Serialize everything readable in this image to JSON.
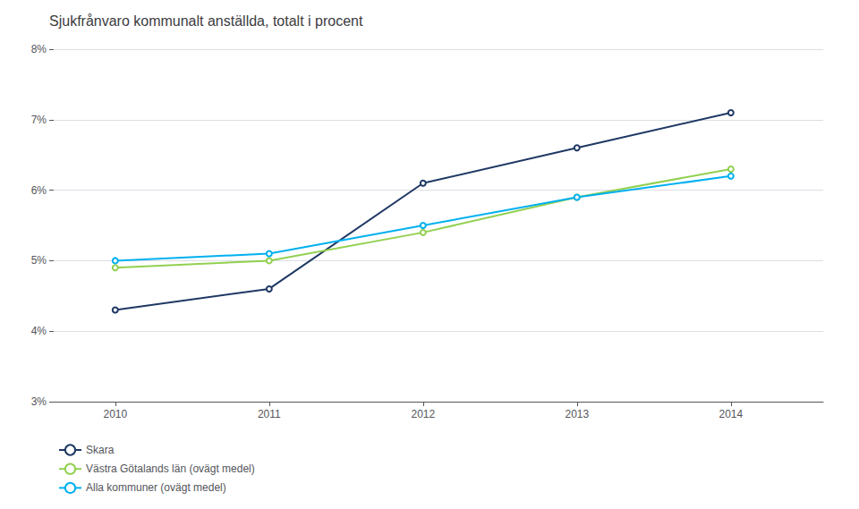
{
  "chart_data": {
    "type": "line",
    "title": "Sjukfrånvaro kommunalt anställda, totalt i procent",
    "x": [
      2010,
      2011,
      2012,
      2013,
      2014
    ],
    "series": [
      {
        "name": "Skara",
        "color": "#1f3864",
        "values": [
          4.3,
          4.6,
          6.1,
          6.6,
          7.1
        ]
      },
      {
        "name": "Västra Götalands län (ovägt medel)",
        "color": "#92d050",
        "values": [
          4.9,
          5.0,
          5.4,
          5.9,
          6.3
        ]
      },
      {
        "name": "Alla kommuner (ovägt medel)",
        "color": "#00b0f0",
        "values": [
          5.0,
          5.1,
          5.5,
          5.9,
          6.2
        ]
      }
    ],
    "xlim": [
      2009.6,
      2014.6
    ],
    "xticks": [
      2010,
      2011,
      2012,
      2013,
      2014
    ],
    "ylim": [
      3,
      8
    ],
    "yticks": [
      {
        "value": 3,
        "label": "3%"
      },
      {
        "value": 4,
        "label": "4%"
      },
      {
        "value": 5,
        "label": "5%"
      },
      {
        "value": 6,
        "label": "6%"
      },
      {
        "value": 7,
        "label": "7%"
      },
      {
        "value": 8,
        "label": "8%"
      }
    ],
    "grid": true,
    "legend": "bottom"
  }
}
